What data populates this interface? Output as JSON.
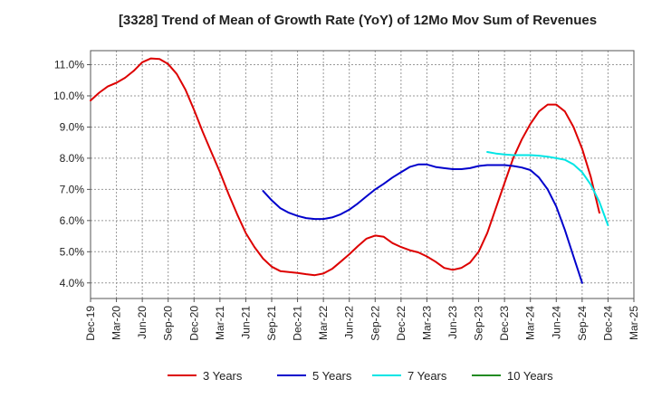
{
  "chart_data": {
    "type": "line",
    "title": "[3328]  Trend of Mean of Growth Rate (YoY) of 12Mo Mov Sum of Revenues",
    "xlabel": "",
    "ylabel": "",
    "x_tick_labels": [
      "Dec-19",
      "Mar-20",
      "Jun-20",
      "Sep-20",
      "Dec-20",
      "Mar-21",
      "Jun-21",
      "Sep-21",
      "Dec-21",
      "Mar-22",
      "Jun-22",
      "Sep-22",
      "Dec-22",
      "Mar-23",
      "Jun-23",
      "Sep-23",
      "Dec-23",
      "Mar-24",
      "Jun-24",
      "Sep-24",
      "Dec-24",
      "Mar-25"
    ],
    "y_tick_labels": [
      "4.0%",
      "5.0%",
      "6.0%",
      "7.0%",
      "8.0%",
      "9.0%",
      "10.0%",
      "11.0%"
    ],
    "y_ticks": [
      4,
      5,
      6,
      7,
      8,
      9,
      10,
      11
    ],
    "ylim": [
      3.5,
      11.45
    ],
    "xlim_months": [
      0,
      63
    ],
    "grid": true,
    "legend_position": "bottom",
    "series": [
      {
        "name": "3 Years",
        "color": "#dd0000",
        "x_months": [
          0,
          1,
          2,
          3,
          4,
          5,
          6,
          7,
          8,
          9,
          10,
          11,
          12,
          13,
          14,
          15,
          16,
          17,
          18,
          19,
          20,
          21,
          22,
          23,
          24,
          25,
          26,
          27,
          28,
          29,
          30,
          31,
          32,
          33,
          34,
          35,
          36,
          37,
          38,
          39,
          40,
          41,
          42,
          43,
          44,
          45,
          46,
          47,
          48,
          49,
          50,
          51,
          52,
          53,
          54,
          55,
          56,
          57,
          58,
          59,
          60
        ],
        "values": [
          9.85,
          10.1,
          10.3,
          10.42,
          10.58,
          10.8,
          11.08,
          11.2,
          11.18,
          11.02,
          10.7,
          10.2,
          9.55,
          8.85,
          8.2,
          7.55,
          6.85,
          6.2,
          5.6,
          5.15,
          4.78,
          4.52,
          4.38,
          4.35,
          4.32,
          4.28,
          4.25,
          4.3,
          4.45,
          4.68,
          4.92,
          5.18,
          5.42,
          5.52,
          5.48,
          5.28,
          5.15,
          5.05,
          4.98,
          4.85,
          4.68,
          4.48,
          4.42,
          4.48,
          4.65,
          5.0,
          5.6,
          6.4,
          7.2,
          8.0,
          8.6,
          9.1,
          9.5,
          9.72,
          9.72,
          9.5,
          9.0,
          8.3,
          7.4,
          6.25,
          null
        ]
      },
      {
        "name": "5 Years",
        "color": "#0000cc",
        "x_months": [
          0,
          1,
          2,
          3,
          4,
          5,
          6,
          7,
          8,
          9,
          10,
          11,
          12,
          13,
          14,
          15,
          16,
          17,
          18,
          19,
          20,
          21,
          22,
          23,
          24,
          25,
          26,
          27,
          28,
          29,
          30,
          31,
          32,
          33,
          34,
          35,
          36,
          37,
          38,
          39,
          40,
          41,
          42,
          43,
          44,
          45,
          46,
          47,
          48,
          49,
          50,
          51,
          52,
          53,
          54,
          55,
          56,
          57,
          58,
          59,
          60
        ],
        "values": [
          null,
          null,
          null,
          null,
          null,
          null,
          null,
          null,
          null,
          null,
          null,
          null,
          null,
          null,
          null,
          null,
          null,
          null,
          null,
          null,
          6.95,
          6.65,
          6.4,
          6.25,
          6.15,
          6.08,
          6.05,
          6.05,
          6.1,
          6.2,
          6.35,
          6.55,
          6.78,
          7.0,
          7.18,
          7.38,
          7.55,
          7.72,
          7.8,
          7.8,
          7.72,
          7.68,
          7.65,
          7.65,
          7.68,
          7.75,
          7.78,
          7.78,
          7.78,
          7.75,
          7.7,
          7.62,
          7.38,
          7.0,
          6.45,
          5.7,
          4.85,
          4.0,
          null,
          null,
          null
        ]
      },
      {
        "name": "7 Years",
        "color": "#00e5e5",
        "x_months": [
          0,
          1,
          2,
          3,
          4,
          5,
          6,
          7,
          8,
          9,
          10,
          11,
          12,
          13,
          14,
          15,
          16,
          17,
          18,
          19,
          20,
          21,
          22,
          23,
          24,
          25,
          26,
          27,
          28,
          29,
          30,
          31,
          32,
          33,
          34,
          35,
          36,
          37,
          38,
          39,
          40,
          41,
          42,
          43,
          44,
          45,
          46,
          47,
          48,
          49,
          50,
          51,
          52,
          53,
          54,
          55,
          56,
          57,
          58,
          59,
          60
        ],
        "values": [
          null,
          null,
          null,
          null,
          null,
          null,
          null,
          null,
          null,
          null,
          null,
          null,
          null,
          null,
          null,
          null,
          null,
          null,
          null,
          null,
          null,
          null,
          null,
          null,
          null,
          null,
          null,
          null,
          null,
          null,
          null,
          null,
          null,
          null,
          null,
          null,
          null,
          null,
          null,
          null,
          null,
          null,
          null,
          null,
          null,
          null,
          8.2,
          8.15,
          8.12,
          8.1,
          8.1,
          8.1,
          8.08,
          8.05,
          8.0,
          7.95,
          7.8,
          7.55,
          7.15,
          6.6,
          5.85
        ]
      },
      {
        "name": "10 Years",
        "color": "#228b22",
        "x_months": [],
        "values": []
      }
    ]
  }
}
